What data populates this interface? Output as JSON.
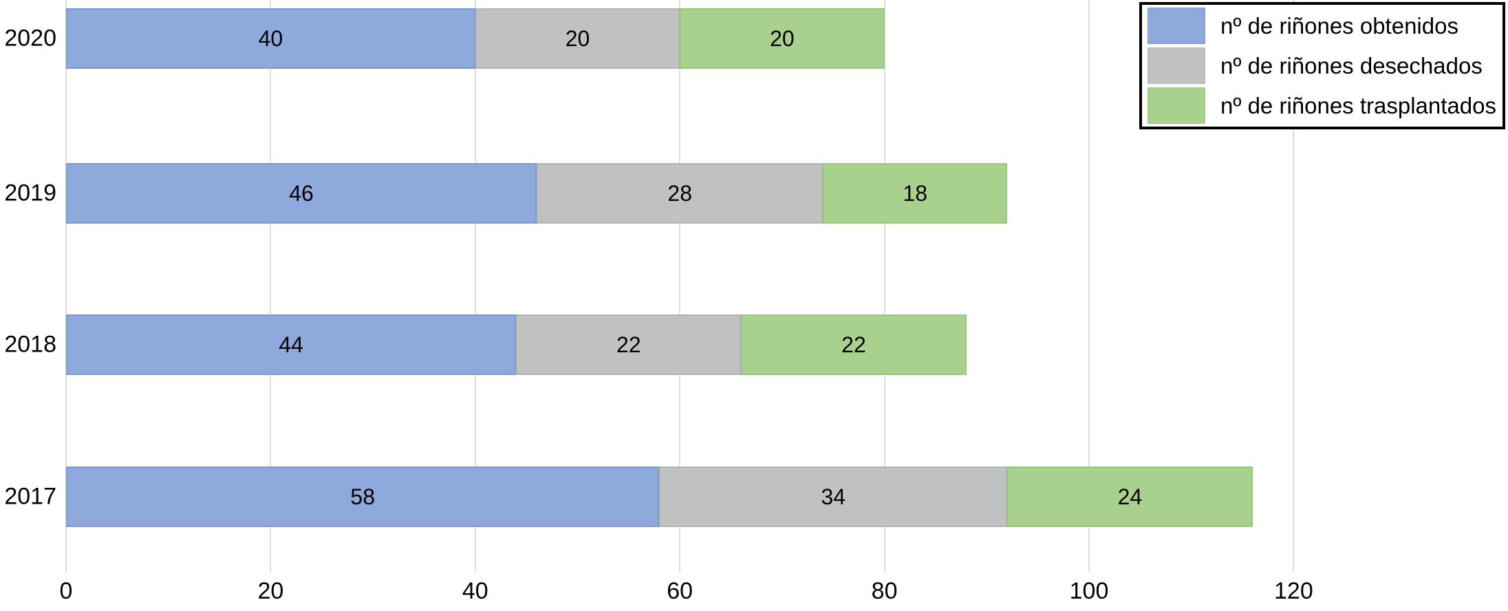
{
  "chart_data": {
    "type": "bar",
    "orientation": "horizontal",
    "stacked": true,
    "title": "",
    "xlabel": "",
    "ylabel": "",
    "categories": [
      "2020",
      "2019",
      "2018",
      "2017"
    ],
    "series": [
      {
        "name": "nº de riñones obtenidos",
        "color": "#8EA9DB",
        "border_color": "#7E99CC",
        "values": [
          40,
          46,
          44,
          58
        ]
      },
      {
        "name": "nº de riñones desechados",
        "color": "#BFC2C1",
        "border_color": "#B1B5B4",
        "values": [
          20,
          28,
          22,
          34
        ]
      },
      {
        "name": "nº de riñones trasplantados",
        "color": "#A9D18E",
        "border_color": "#9CC57F",
        "values": [
          20,
          18,
          22,
          24
        ]
      }
    ],
    "totals_by_category": [
      80,
      92,
      88,
      116
    ],
    "x_ticks": [
      0,
      20,
      40,
      60,
      80,
      100,
      120
    ],
    "xlim": [
      0,
      126
    ],
    "grid": true,
    "gridline_color": "#dcdfde",
    "legend_position": "top-right",
    "background_color": "#ffffff",
    "text_color": "#000000"
  }
}
